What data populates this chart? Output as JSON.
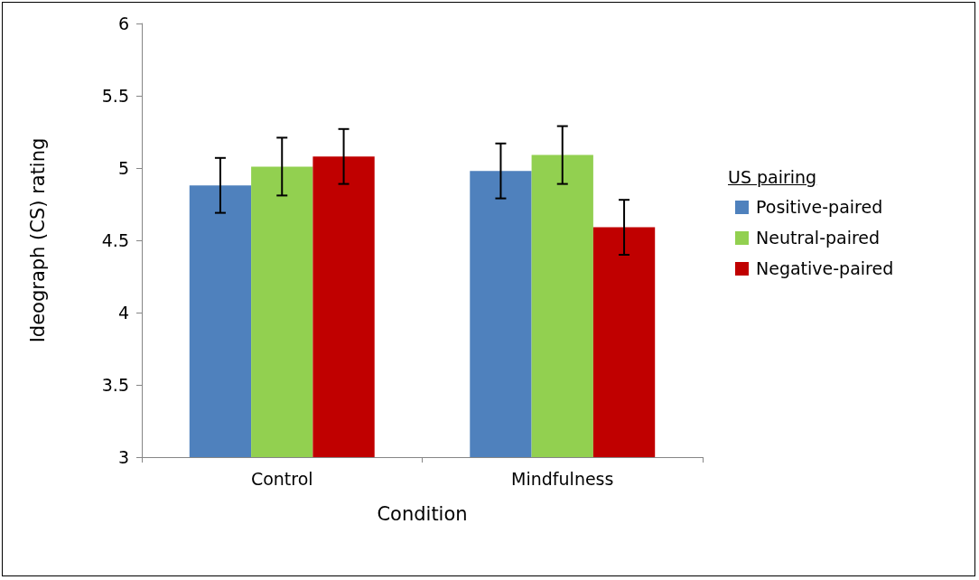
{
  "chart_data": {
    "type": "bar",
    "xlabel": "Condition",
    "ylabel": "Ideograph (CS) rating",
    "legend_title": "US pairing",
    "categories": [
      "Control",
      "Mindfulness"
    ],
    "series": [
      {
        "name": "Positive-paired",
        "color": "#4f81bd",
        "values": [
          4.88,
          4.98
        ],
        "errors": [
          0.19,
          0.19
        ]
      },
      {
        "name": "Neutral-paired",
        "color": "#92d050",
        "values": [
          5.01,
          5.09
        ],
        "errors": [
          0.2,
          0.2
        ]
      },
      {
        "name": "Negative-paired",
        "color": "#c00000",
        "values": [
          5.08,
          4.59
        ],
        "errors": [
          0.19,
          0.19
        ]
      }
    ],
    "ylim": [
      3,
      6
    ],
    "yticks": [
      3,
      3.5,
      4,
      4.5,
      5,
      5.5,
      6
    ],
    "grid": false,
    "legend": "right"
  }
}
